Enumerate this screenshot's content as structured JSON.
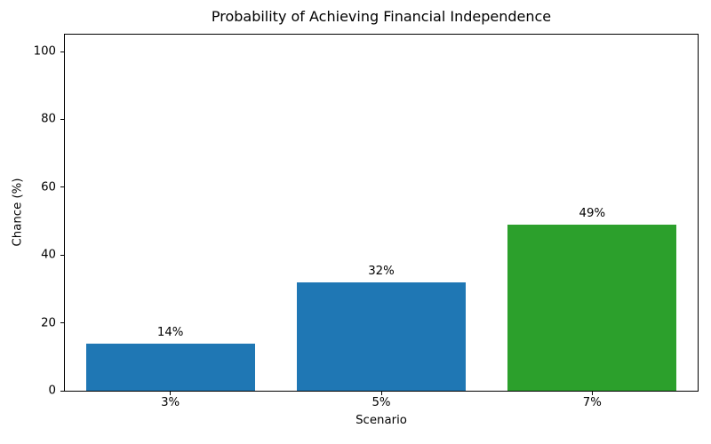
{
  "chart_data": {
    "type": "bar",
    "title": "Probability of Achieving Financial Independence",
    "xlabel": "Scenario",
    "ylabel": "Chance (%)",
    "categories": [
      "3%",
      "5%",
      "7%"
    ],
    "values": [
      14,
      32,
      49
    ],
    "bar_labels": [
      "14%",
      "32%",
      "49%"
    ],
    "bar_colors": [
      "#1f77b4",
      "#1f77b4",
      "#2ca02c"
    ],
    "ylim": [
      0,
      105
    ],
    "yticks": [
      0,
      20,
      40,
      60,
      80,
      100
    ],
    "grid": false,
    "legend_position": "none",
    "bar_width_fraction": 0.8,
    "axis_color": "#000000",
    "text_color": "#000000",
    "background_color": "#ffffff"
  }
}
